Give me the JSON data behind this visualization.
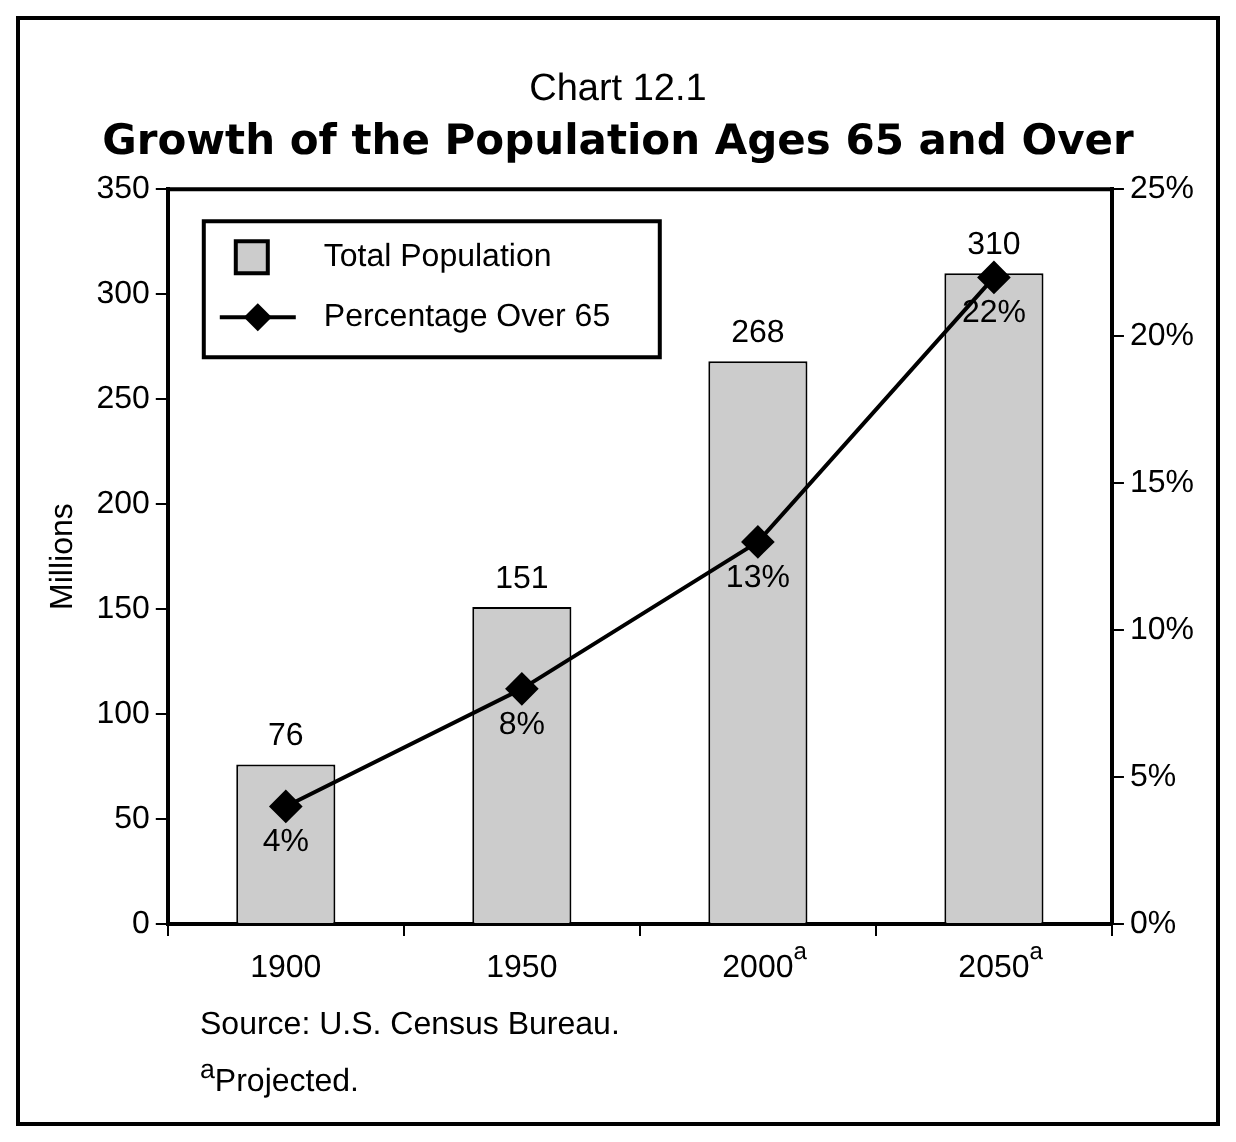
{
  "chart_data": {
    "type": "bar",
    "subtitle": "Chart 12.1",
    "title": "Growth of the Population Ages 65 and Over",
    "ylabel": "Millions",
    "categories": [
      "1900",
      "1950",
      "2000$^{a}$",
      "2050$^{a}$"
    ],
    "series": [
      {
        "name": "Total Population",
        "color": "#cccccc",
        "values": [
          76,
          151,
          268,
          310
        ],
        "value_labels": [
          "76",
          "151",
          "268",
          "310"
        ]
      },
      {
        "name": "Percentage Over 65",
        "type": "line",
        "axis": "y2",
        "color": "#000000",
        "marker": "diamond",
        "values": [
          4,
          8,
          13,
          22
        ],
        "value_labels": [
          "4%",
          "8%",
          "13%",
          "22%"
        ]
      }
    ],
    "ylim": [
      0,
      350
    ],
    "yticks": [
      0,
      50,
      100,
      150,
      200,
      250,
      300,
      350
    ],
    "y2lim": [
      0,
      25
    ],
    "y2ticks": [
      {
        "value": 0,
        "label": "0%"
      },
      {
        "value": 5,
        "label": "5%"
      },
      {
        "value": 10,
        "label": "10%"
      },
      {
        "value": 15,
        "label": "15%"
      },
      {
        "value": 20,
        "label": "20%"
      },
      {
        "value": 25,
        "label": "25%"
      }
    ],
    "legend": "top left",
    "grid": false,
    "annotations": [
      "Source: U.S. Census Bureau.",
      "$^{a}$Projected."
    ]
  }
}
